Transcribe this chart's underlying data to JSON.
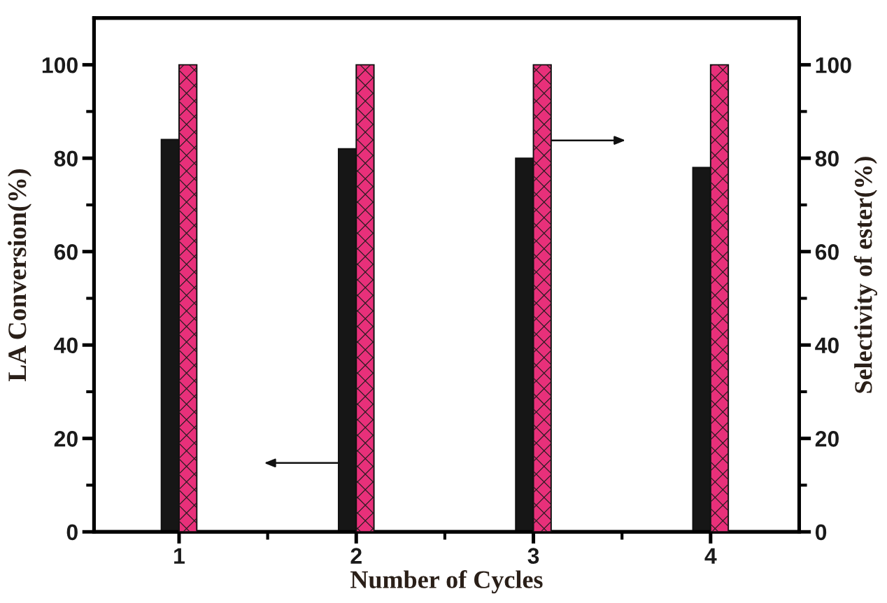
{
  "chart_data": {
    "type": "bar",
    "xlabel": "Number of Cycles",
    "ylabel": "LA Conversion(%)",
    "y2label": "Selectivity of ester(%)",
    "categories": [
      "1",
      "2",
      "3",
      "4"
    ],
    "series": [
      {
        "color": "#161616",
        "values": [
          84,
          82,
          80,
          78
        ]
      },
      {
        "color": "#e8307a",
        "values": [
          100,
          100,
          100,
          100
        ],
        "axis": "y2"
      }
    ],
    "ylim": [
      0,
      110
    ],
    "yticks": [
      0,
      {
        "value": 10,
        "label": null
      },
      20,
      {
        "value": 30,
        "label": null
      },
      40,
      {
        "value": 50,
        "label": null
      },
      60,
      {
        "value": 70,
        "label": null
      },
      80,
      {
        "value": 90,
        "label": null
      },
      100
    ],
    "y2lim": [
      0,
      110
    ],
    "y2ticks": [
      0,
      {
        "value": 10,
        "label": null
      },
      20,
      {
        "value": 30,
        "label": null
      },
      40,
      {
        "value": 50,
        "label": null
      },
      60,
      {
        "value": 70,
        "label": null
      },
      80,
      {
        "value": 90,
        "label": null
      },
      100
    ],
    "grid": false
  }
}
